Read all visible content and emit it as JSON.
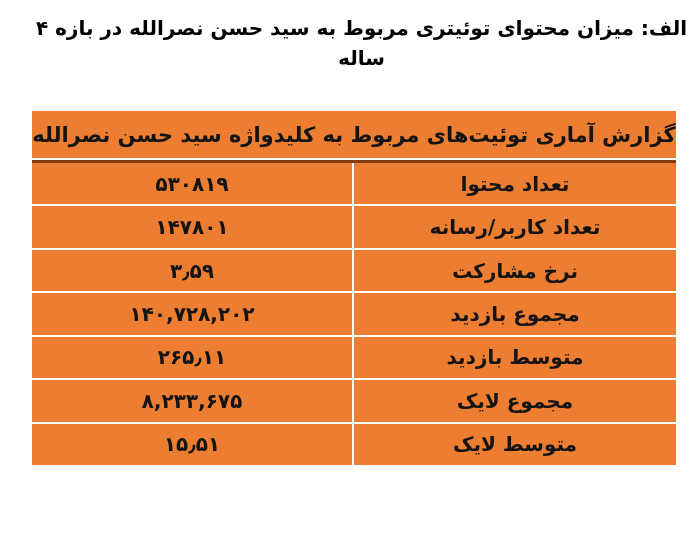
{
  "chart_data": {
    "type": "table",
    "caption": "الف: میزان محتوای توئیتری مربوط به سید حسن نصرالله در بازه ۴ ساله",
    "title": "گزارش آماری توئیت‌های مربوط به کلیدواژه سید حسن نصرالله",
    "direction": "rtl",
    "layout": "two-column: value (left) | metric label (right)",
    "rows": [
      {
        "metric": "تعداد محتوا",
        "value_display": "۵۳۰۸۱۹",
        "value": 530819
      },
      {
        "metric": "تعداد کاربر/رسانه",
        "value_display": "۱۴۷۸۰۱",
        "value": 147801
      },
      {
        "metric": "نرخ مشارکت",
        "value_display": "۳٫۵۹",
        "value": 3.59
      },
      {
        "metric": "مجموع بازدید",
        "value_display": "۱۴۰,۷۲۸,۲۰۲",
        "value": 140728202
      },
      {
        "metric": "متوسط بازدید",
        "value_display": "۲۶۵٫۱۱",
        "value": 265.11
      },
      {
        "metric": "مجموع لایک",
        "value_display": "۸,۲۳۳,۶۷۵",
        "value": 8233675
      },
      {
        "metric": "متوسط لایک",
        "value_display": "۱۵٫۵۱",
        "value": 15.51
      }
    ]
  },
  "colors": {
    "table_background": "#ED7D31",
    "header_underline": "#833C0B",
    "cell_divider": "#FFFFFF",
    "text": "#141414",
    "page_background": "#FFFFFF"
  }
}
